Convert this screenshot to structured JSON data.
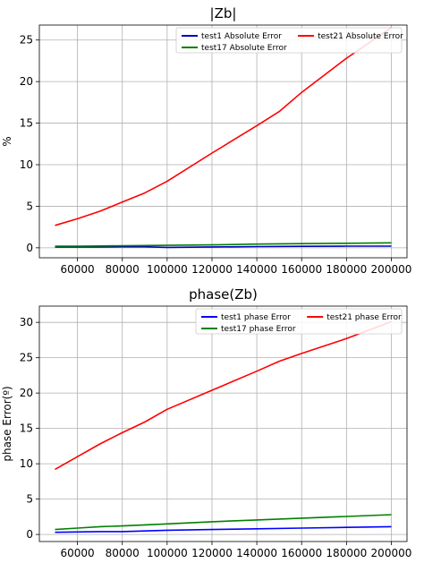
{
  "chart_data": [
    {
      "type": "line",
      "title": "|Zb|",
      "xlabel": "",
      "ylabel": "%",
      "xlim": [
        43000,
        207000
      ],
      "ylim": [
        -1.2,
        26.8
      ],
      "xticks": [
        60000,
        80000,
        100000,
        120000,
        140000,
        160000,
        180000,
        200000
      ],
      "yticks": [
        0,
        5,
        10,
        15,
        20,
        25
      ],
      "grid": true,
      "legend": "top-right",
      "series": [
        {
          "name": "test1 Absolute Error",
          "color": "#0000bf",
          "x": [
            50000,
            60000,
            70000,
            80000,
            90000,
            100000,
            120000,
            140000,
            160000,
            180000,
            200000
          ],
          "y": [
            0.1,
            0.1,
            0.1,
            0.12,
            0.12,
            0.05,
            0.1,
            0.15,
            0.18,
            0.2,
            0.2
          ]
        },
        {
          "name": "test17 Absolute Error",
          "color": "#007f00",
          "x": [
            50000,
            60000,
            70000,
            80000,
            90000,
            100000,
            120000,
            140000,
            160000,
            180000,
            200000
          ],
          "y": [
            0.2,
            0.2,
            0.22,
            0.25,
            0.28,
            0.3,
            0.35,
            0.45,
            0.5,
            0.55,
            0.6
          ]
        },
        {
          "name": "test21 Absolute Error",
          "color": "#ff0000",
          "x": [
            50000,
            60000,
            70000,
            80000,
            90000,
            100000,
            120000,
            140000,
            150000,
            160000,
            180000,
            200000
          ],
          "y": [
            2.7,
            3.5,
            4.4,
            5.5,
            6.6,
            8.0,
            11.4,
            14.7,
            16.4,
            18.7,
            22.8,
            26.5
          ]
        }
      ]
    },
    {
      "type": "line",
      "title": "phase(Zb)",
      "xlabel": "",
      "ylabel": "phase Error(º)",
      "xlim": [
        43000,
        207000
      ],
      "ylim": [
        -1.0,
        32.3
      ],
      "xticks": [
        60000,
        80000,
        100000,
        120000,
        140000,
        160000,
        180000,
        200000
      ],
      "yticks": [
        0,
        5,
        10,
        15,
        20,
        25,
        30
      ],
      "grid": true,
      "legend": "top-right",
      "series": [
        {
          "name": "test1 phase Error",
          "color": "#0000ff",
          "x": [
            50000,
            60000,
            70000,
            80000,
            90000,
            100000,
            120000,
            140000,
            160000,
            180000,
            200000
          ],
          "y": [
            0.3,
            0.35,
            0.4,
            0.4,
            0.5,
            0.6,
            0.7,
            0.8,
            0.9,
            1.0,
            1.1
          ]
        },
        {
          "name": "test17 phase Error",
          "color": "#008000",
          "x": [
            50000,
            60000,
            70000,
            80000,
            90000,
            100000,
            120000,
            140000,
            160000,
            180000,
            200000
          ],
          "y": [
            0.7,
            0.9,
            1.1,
            1.2,
            1.35,
            1.5,
            1.8,
            2.05,
            2.3,
            2.55,
            2.8
          ]
        },
        {
          "name": "test21 phase Error",
          "color": "#ff0000",
          "x": [
            50000,
            60000,
            70000,
            80000,
            90000,
            100000,
            120000,
            140000,
            150000,
            160000,
            180000,
            200000
          ],
          "y": [
            9.2,
            11.0,
            12.8,
            14.4,
            15.9,
            17.7,
            20.4,
            23.1,
            24.5,
            25.6,
            27.7,
            30.1
          ]
        }
      ]
    }
  ]
}
